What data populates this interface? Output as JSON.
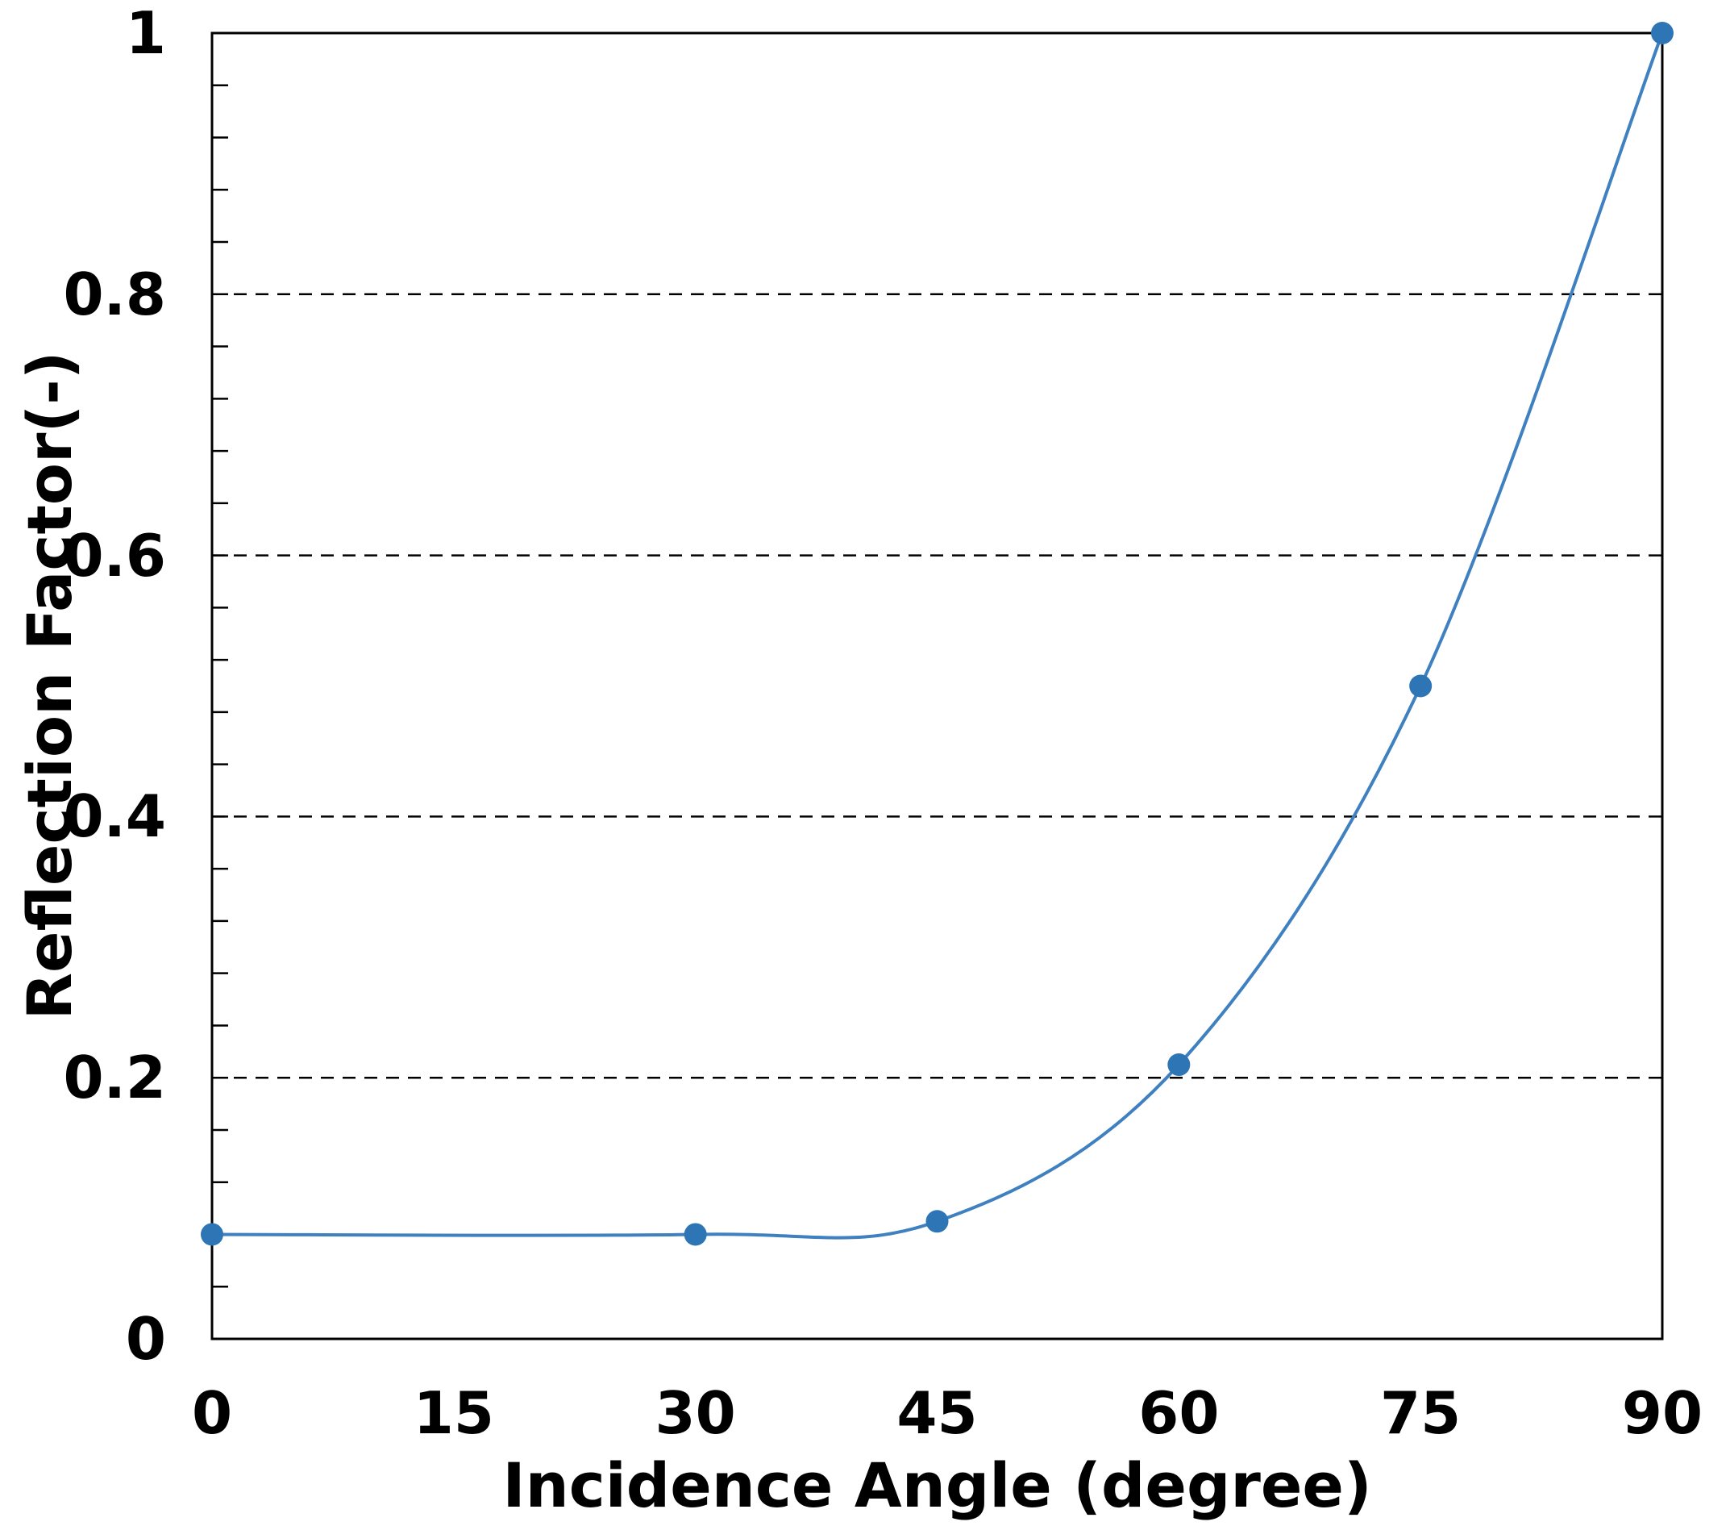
{
  "chart_data": {
    "type": "line",
    "title": "",
    "xlabel": "Incidence Angle (degree)",
    "ylabel": "Reflection Factor(-)",
    "series": [
      {
        "name": "Reflection Factor",
        "x": [
          0,
          30,
          45,
          60,
          75,
          90
        ],
        "y": [
          0.08,
          0.08,
          0.09,
          0.21,
          0.5,
          1.0
        ]
      }
    ],
    "xlim": [
      0,
      90
    ],
    "ylim": [
      0,
      1
    ],
    "x_ticks": [
      0,
      15,
      30,
      45,
      60,
      75,
      90
    ],
    "x_tick_labels": [
      "0",
      "15",
      "30",
      "45",
      "60",
      "75",
      "90"
    ],
    "y_ticks": [
      0,
      0.2,
      0.4,
      0.6,
      0.8,
      1
    ],
    "y_tick_labels": [
      "0",
      "0.2",
      "0.4",
      "0.6",
      "0.8",
      "1"
    ],
    "y_gridlines": [
      0.2,
      0.4,
      0.6,
      0.8
    ],
    "y_minor_tick_step": 0.04,
    "grid_style": "dashed",
    "legend": "none",
    "smooth": true,
    "marker": "circle",
    "colors": {
      "line": "#3f80c0",
      "marker": "#2e75b6",
      "axis": "#000000",
      "grid": "#000000",
      "text": "#000000",
      "background": "#ffffff"
    }
  }
}
